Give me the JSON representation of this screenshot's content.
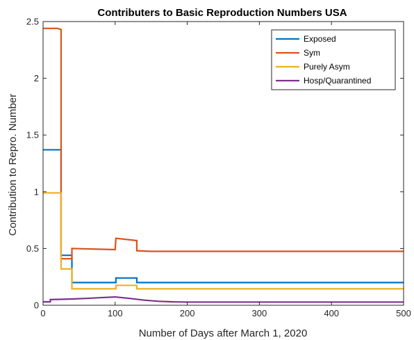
{
  "chart_data": {
    "type": "line",
    "title": "Contributers to Basic Reproduction Numbers USA",
    "xlabel": "Number of Days after March 1, 2020",
    "ylabel": "Contribution to Repro. Number",
    "xlim": [
      0,
      500
    ],
    "ylim": [
      0,
      2.5
    ],
    "xticks": [
      0,
      100,
      200,
      300,
      400,
      500
    ],
    "yticks": [
      0,
      0.5,
      1,
      1.5,
      2,
      2.5
    ],
    "xtick_labels": [
      "0",
      "100",
      "200",
      "300",
      "400",
      "500"
    ],
    "ytick_labels": [
      "0",
      "0.5",
      "1",
      "1.5",
      "2",
      "2.5"
    ],
    "grid": false,
    "legend_position": "top-right",
    "series": [
      {
        "name": "Exposed",
        "color": "#0072BD",
        "x": [
          0,
          25,
          25,
          40,
          40,
          101,
          101,
          130,
          130,
          500
        ],
        "y": [
          1.37,
          1.37,
          0.44,
          0.44,
          0.2,
          0.2,
          0.24,
          0.24,
          0.2,
          0.2
        ]
      },
      {
        "name": "Sym",
        "color": "#D95319",
        "x": [
          0,
          20,
          25,
          25,
          40,
          40,
          100,
          101,
          130,
          130,
          150,
          500
        ],
        "y": [
          2.44,
          2.44,
          2.43,
          0.41,
          0.41,
          0.5,
          0.49,
          0.59,
          0.57,
          0.48,
          0.475,
          0.475
        ]
      },
      {
        "name": "Purely Asym",
        "color": "#EDB120",
        "x": [
          0,
          25,
          25,
          40,
          40,
          101,
          101,
          130,
          130,
          500
        ],
        "y": [
          0.99,
          0.99,
          0.32,
          0.32,
          0.145,
          0.145,
          0.175,
          0.175,
          0.145,
          0.145
        ]
      },
      {
        "name": "Hosp/Quarantined",
        "color": "#7E2F8E",
        "x": [
          0,
          10,
          10,
          25,
          40,
          60,
          80,
          100,
          120,
          140,
          160,
          180,
          200,
          500
        ],
        "y": [
          0.03,
          0.03,
          0.05,
          0.052,
          0.055,
          0.06,
          0.067,
          0.073,
          0.06,
          0.045,
          0.035,
          0.03,
          0.028,
          0.028
        ]
      }
    ]
  }
}
